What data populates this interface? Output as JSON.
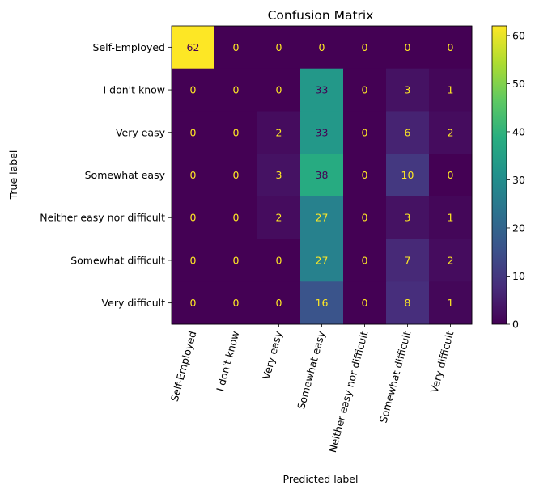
{
  "chart_data": {
    "type": "heatmap",
    "title": "Confusion Matrix",
    "xlabel": "Predicted label",
    "ylabel": "True label",
    "rows": [
      "Self-Employed",
      "I don't know",
      "Very easy",
      "Somewhat easy",
      "Neither easy nor difficult",
      "Somewhat difficult",
      "Very difficult"
    ],
    "columns": [
      "Self-Employed",
      "I don't know",
      "Very easy",
      "Somewhat easy",
      "Neither easy nor difficult",
      "Somewhat difficult",
      "Very difficult"
    ],
    "values": [
      [
        62,
        0,
        0,
        0,
        0,
        0,
        0
      ],
      [
        0,
        0,
        0,
        33,
        0,
        3,
        1
      ],
      [
        0,
        0,
        2,
        33,
        0,
        6,
        2
      ],
      [
        0,
        0,
        3,
        38,
        0,
        10,
        0
      ],
      [
        0,
        0,
        2,
        27,
        0,
        3,
        1
      ],
      [
        0,
        0,
        0,
        27,
        0,
        7,
        2
      ],
      [
        0,
        0,
        0,
        16,
        0,
        8,
        1
      ]
    ],
    "colormap": "viridis",
    "vmin": 0,
    "vmax": 62,
    "colorbar_ticks": [
      0,
      10,
      20,
      30,
      40,
      50,
      60
    ]
  }
}
